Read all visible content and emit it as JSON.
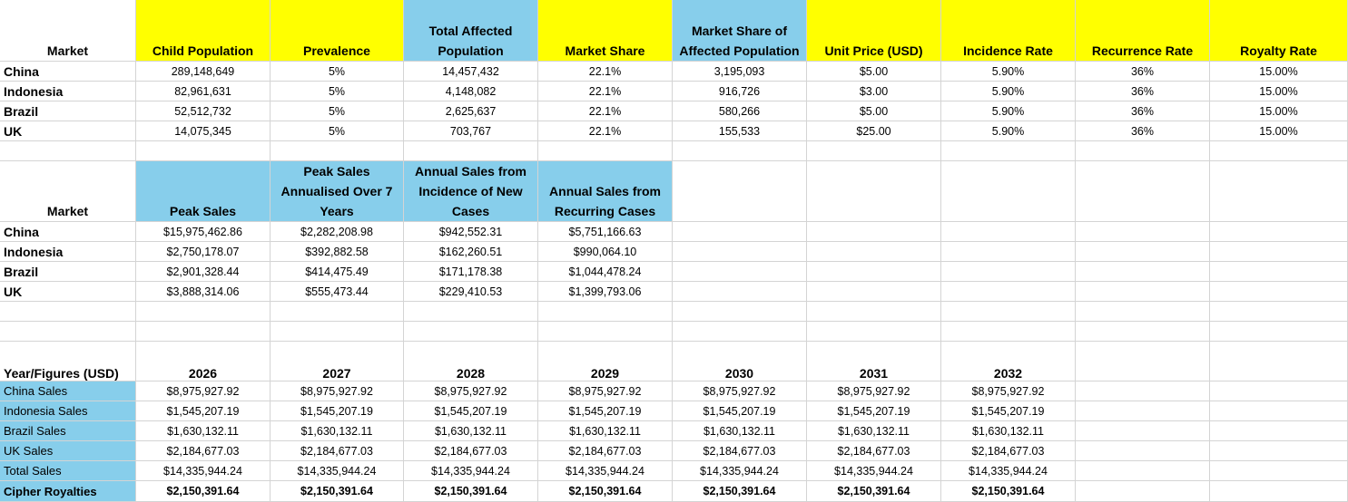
{
  "colors": {
    "yellow_header": "#ffff00",
    "blue_header": "#87ceeb",
    "gridline": "#d4d4d4"
  },
  "table1": {
    "headers": [
      "Market",
      "Child Population",
      "Prevalence",
      "Total Affected Population",
      "Market Share",
      "Market Share of Affected Population",
      "Unit Price (USD)",
      "Incidence Rate",
      "Recurrence Rate",
      "Royalty Rate"
    ],
    "rows": [
      [
        "China",
        "289,148,649",
        "5%",
        "14,457,432",
        "22.1%",
        "3,195,093",
        "$5.00",
        "5.90%",
        "36%",
        "15.00%"
      ],
      [
        "Indonesia",
        "82,961,631",
        "5%",
        "4,148,082",
        "22.1%",
        "916,726",
        "$3.00",
        "5.90%",
        "36%",
        "15.00%"
      ],
      [
        "Brazil",
        "52,512,732",
        "5%",
        "2,625,637",
        "22.1%",
        "580,266",
        "$5.00",
        "5.90%",
        "36%",
        "15.00%"
      ],
      [
        "UK",
        "14,075,345",
        "5%",
        "703,767",
        "22.1%",
        "155,533",
        "$25.00",
        "5.90%",
        "36%",
        "15.00%"
      ]
    ]
  },
  "table2": {
    "headers": [
      "Market",
      "Peak Sales",
      "Peak Sales Annualised Over 7 Years",
      "Annual Sales from Incidence of New Cases",
      "Annual Sales from Recurring Cases"
    ],
    "rows": [
      [
        "China",
        "$15,975,462.86",
        "$2,282,208.98",
        "$942,552.31",
        "$5,751,166.63"
      ],
      [
        "Indonesia",
        "$2,750,178.07",
        "$392,882.58",
        "$162,260.51",
        "$990,064.10"
      ],
      [
        "Brazil",
        "$2,901,328.44",
        "$414,475.49",
        "$171,178.38",
        "$1,044,478.24"
      ],
      [
        "UK",
        "$3,888,314.06",
        "$555,473.44",
        "$229,410.53",
        "$1,399,793.06"
      ]
    ]
  },
  "table3": {
    "headers": [
      "Year/Figures (USD)",
      "2026",
      "2027",
      "2028",
      "2029",
      "2030",
      "2031",
      "2032"
    ],
    "rows": [
      {
        "label": "China Sales",
        "values": [
          "$8,975,927.92",
          "$8,975,927.92",
          "$8,975,927.92",
          "$8,975,927.92",
          "$8,975,927.92",
          "$8,975,927.92",
          "$8,975,927.92"
        ]
      },
      {
        "label": "Indonesia Sales",
        "values": [
          "$1,545,207.19",
          "$1,545,207.19",
          "$1,545,207.19",
          "$1,545,207.19",
          "$1,545,207.19",
          "$1,545,207.19",
          "$1,545,207.19"
        ]
      },
      {
        "label": "Brazil Sales",
        "values": [
          "$1,630,132.11",
          "$1,630,132.11",
          "$1,630,132.11",
          "$1,630,132.11",
          "$1,630,132.11",
          "$1,630,132.11",
          "$1,630,132.11"
        ]
      },
      {
        "label": "UK Sales",
        "values": [
          "$2,184,677.03",
          "$2,184,677.03",
          "$2,184,677.03",
          "$2,184,677.03",
          "$2,184,677.03",
          "$2,184,677.03",
          "$2,184,677.03"
        ]
      },
      {
        "label": "Total Sales",
        "values": [
          "$14,335,944.24",
          "$14,335,944.24",
          "$14,335,944.24",
          "$14,335,944.24",
          "$14,335,944.24",
          "$14,335,944.24",
          "$14,335,944.24"
        ]
      },
      {
        "label": "Cipher Royalties",
        "values": [
          "$2,150,391.64",
          "$2,150,391.64",
          "$2,150,391.64",
          "$2,150,391.64",
          "$2,150,391.64",
          "$2,150,391.64",
          "$2,150,391.64"
        ],
        "bold": true
      }
    ]
  }
}
